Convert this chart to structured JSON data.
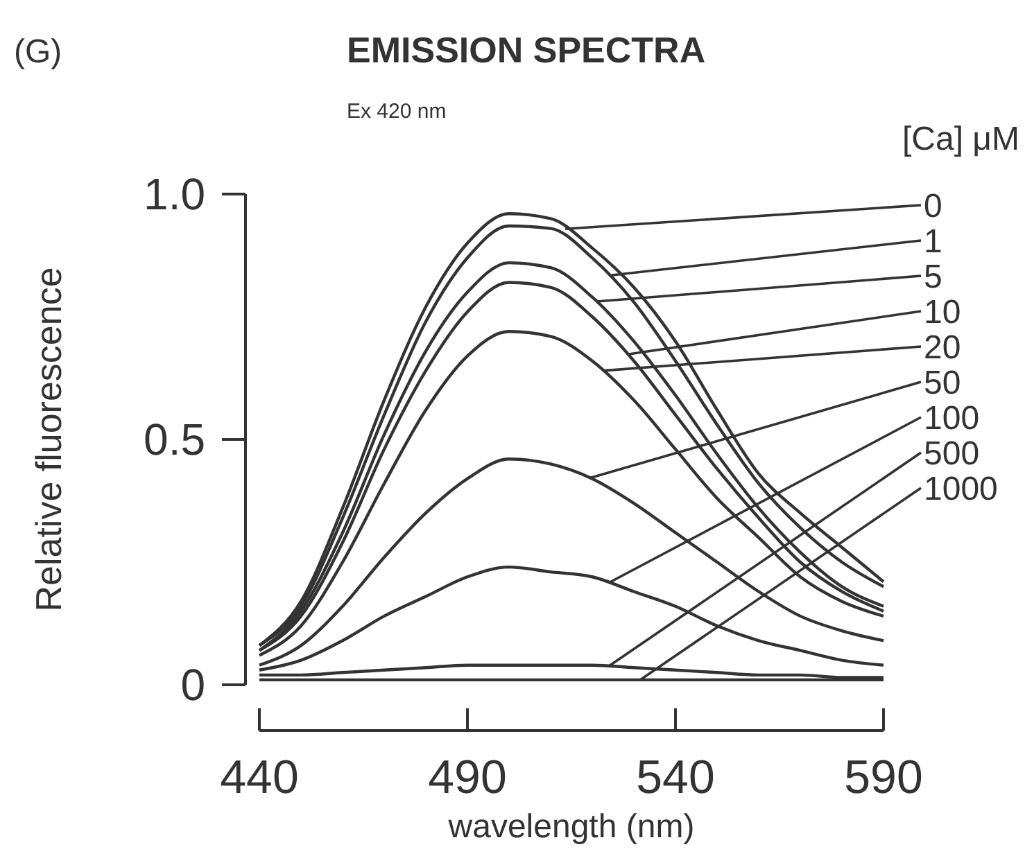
{
  "chart_data": {
    "type": "line",
    "title": "EMISSION SPECTRA",
    "subtitle": "Ex 420 nm",
    "annotations": [
      "(G)"
    ],
    "xlabel": "wavelength (nm)",
    "ylabel": "Relative fluorescence",
    "legend_title": "[Ca] μM",
    "x": [
      440,
      450,
      460,
      470,
      480,
      490,
      500,
      510,
      520,
      530,
      540,
      550,
      560,
      570,
      580,
      590
    ],
    "xlim": [
      440,
      590
    ],
    "xticks": [
      440,
      490,
      540,
      590
    ],
    "ylim": [
      0,
      1
    ],
    "yticks": [
      {
        "value": 0,
        "label": "0"
      },
      0.5,
      {
        "value": 1,
        "label": "1.0"
      }
    ],
    "grid": false,
    "marker": "none",
    "line_style": "solid",
    "series": [
      {
        "name": "0",
        "color": "#333333",
        "values": [
          0.08,
          0.17,
          0.36,
          0.58,
          0.77,
          0.9,
          0.96,
          0.95,
          0.89,
          0.81,
          0.7,
          0.56,
          0.43,
          0.35,
          0.28,
          0.21
        ]
      },
      {
        "name": "1",
        "color": "#333333",
        "values": [
          0.08,
          0.16,
          0.34,
          0.55,
          0.74,
          0.87,
          0.935,
          0.93,
          0.87,
          0.78,
          0.66,
          0.53,
          0.41,
          0.32,
          0.25,
          0.2
        ]
      },
      {
        "name": "5",
        "color": "#333333",
        "values": [
          0.07,
          0.15,
          0.31,
          0.51,
          0.68,
          0.8,
          0.86,
          0.85,
          0.79,
          0.7,
          0.59,
          0.47,
          0.36,
          0.27,
          0.2,
          0.16
        ]
      },
      {
        "name": "10",
        "color": "#333333",
        "values": [
          0.07,
          0.14,
          0.29,
          0.48,
          0.64,
          0.76,
          0.82,
          0.81,
          0.75,
          0.66,
          0.55,
          0.44,
          0.34,
          0.25,
          0.19,
          0.15
        ]
      },
      {
        "name": "20",
        "color": "#333333",
        "values": [
          0.06,
          0.12,
          0.25,
          0.41,
          0.56,
          0.67,
          0.72,
          0.71,
          0.66,
          0.58,
          0.48,
          0.38,
          0.3,
          0.22,
          0.17,
          0.14
        ]
      },
      {
        "name": "50",
        "color": "#333333",
        "values": [
          0.04,
          0.08,
          0.16,
          0.26,
          0.35,
          0.42,
          0.46,
          0.45,
          0.42,
          0.37,
          0.31,
          0.25,
          0.19,
          0.14,
          0.11,
          0.09
        ]
      },
      {
        "name": "100",
        "color": "#333333",
        "values": [
          0.03,
          0.05,
          0.09,
          0.14,
          0.18,
          0.22,
          0.24,
          0.23,
          0.22,
          0.19,
          0.16,
          0.12,
          0.09,
          0.07,
          0.05,
          0.04
        ]
      },
      {
        "name": "500",
        "color": "#333333",
        "values": [
          0.02,
          0.02,
          0.025,
          0.03,
          0.035,
          0.04,
          0.04,
          0.04,
          0.04,
          0.035,
          0.03,
          0.025,
          0.02,
          0.02,
          0.015,
          0.015
        ]
      },
      {
        "name": "1000",
        "color": "#333333",
        "values": [
          0.01,
          0.01,
          0.01,
          0.01,
          0.01,
          0.01,
          0.01,
          0.01,
          0.01,
          0.01,
          0.01,
          0.01,
          0.01,
          0.01,
          0.01,
          0.01
        ]
      }
    ]
  }
}
